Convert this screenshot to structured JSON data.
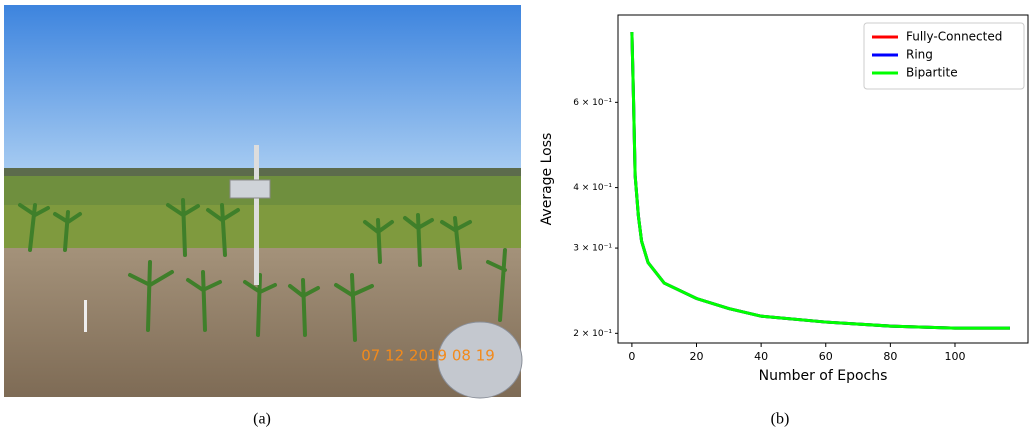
{
  "photo": {
    "timestamp": "07 12 2019 08 19",
    "caption": "(a)"
  },
  "chart_data": {
    "type": "line",
    "caption": "(b)",
    "x_label": "Number of Epochs",
    "y_label": "Average Loss",
    "x": [
      0,
      0.5,
      1,
      2,
      3,
      5,
      10,
      20,
      30,
      40,
      60,
      80,
      100,
      117
    ],
    "series": [
      {
        "name": "Fully-Connected",
        "color": "#ff0000",
        "values": [
          0.838,
          0.61,
          0.424,
          0.35,
          0.31,
          0.28,
          0.254,
          0.236,
          0.225,
          0.217,
          0.211,
          0.207,
          0.205,
          0.205
        ]
      },
      {
        "name": "Ring",
        "color": "#0000ff",
        "values": [
          0.838,
          0.61,
          0.424,
          0.35,
          0.31,
          0.28,
          0.254,
          0.236,
          0.225,
          0.217,
          0.211,
          0.207,
          0.205,
          0.205
        ]
      },
      {
        "name": "Bipartite",
        "color": "#00ff00",
        "values": [
          0.838,
          0.61,
          0.424,
          0.35,
          0.31,
          0.28,
          0.254,
          0.236,
          0.225,
          0.217,
          0.211,
          0.207,
          0.205,
          0.205
        ]
      }
    ],
    "xlim": [
      -4.3,
      122.6
    ],
    "xticks": [
      0,
      20,
      40,
      60,
      80,
      100
    ],
    "ylim": [
      0.191,
      0.909
    ],
    "yscale": "log",
    "yticks": [
      {
        "value": 0.2,
        "label": "2 × 10⁻¹"
      },
      {
        "value": 0.3,
        "label": "3 × 10⁻¹"
      },
      {
        "value": 0.4,
        "label": "4 × 10⁻¹"
      },
      {
        "value": 0.6,
        "label": "6 × 10⁻¹"
      }
    ],
    "legend": "upper right"
  }
}
